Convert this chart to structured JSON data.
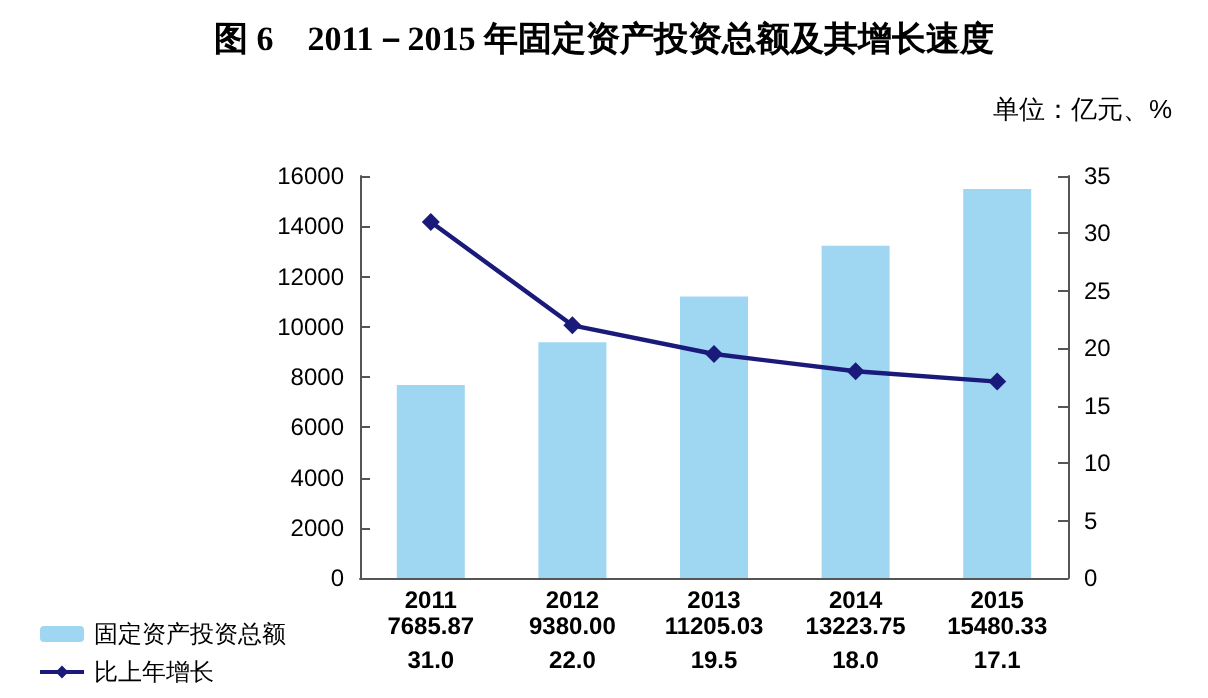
{
  "chart_data": {
    "type": "bar",
    "title": "图 6　2011－2015 年固定资产投资总额及其增长速度",
    "annotations": [
      "单位：亿元、%"
    ],
    "categories": [
      "2011",
      "2012",
      "2013",
      "2014",
      "2015"
    ],
    "series": [
      {
        "name": "固定资产投资总额",
        "color": "#9fd6f2",
        "values": [
          7685.87,
          9380.0,
          11205.03,
          13223.75,
          15480.33
        ],
        "value_labels": [
          "7685.87",
          "9380.00",
          "11205.03",
          "13223.75",
          "15480.33"
        ]
      },
      {
        "name": "比上年增长",
        "type": "line",
        "axis": "y2",
        "color": "#1a1a7a",
        "marker": "diamond",
        "values": [
          31.0,
          22.0,
          19.5,
          18.0,
          17.1
        ],
        "value_labels": [
          "31.0",
          "22.0",
          "19.5",
          "18.0",
          "17.1"
        ]
      }
    ],
    "ylim": [
      0,
      16000
    ],
    "yticks": [
      0,
      2000,
      4000,
      6000,
      8000,
      10000,
      12000,
      14000,
      16000
    ],
    "y2lim": [
      0,
      35
    ],
    "y2ticks": [
      0,
      5,
      10,
      15,
      20,
      25,
      30,
      35
    ],
    "legend": "bottom left",
    "grid": false
  }
}
